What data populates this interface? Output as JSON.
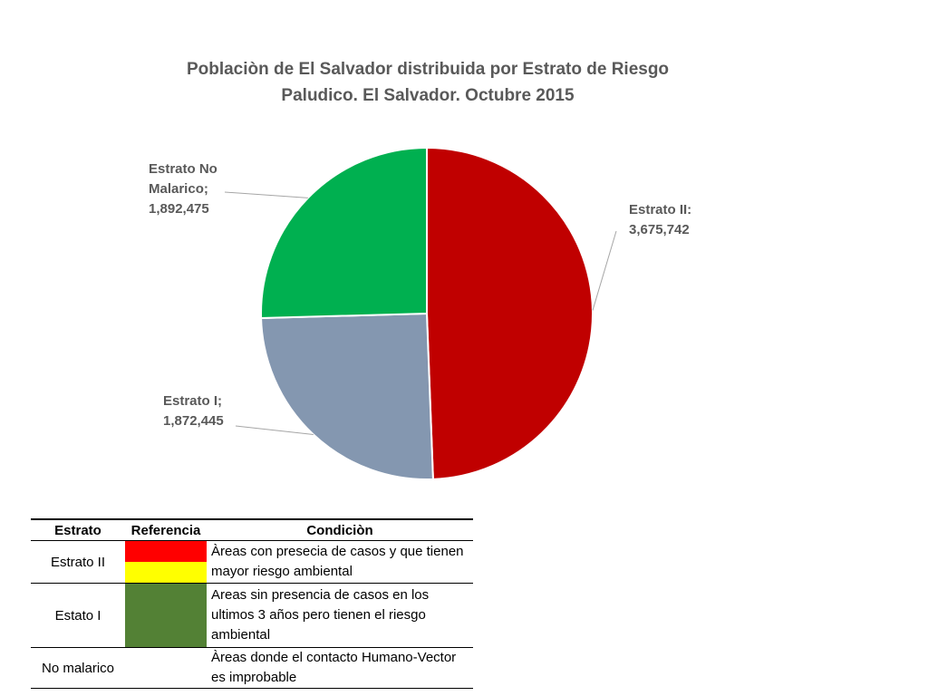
{
  "chart_data": {
    "type": "pie",
    "title_lines": [
      "Poblaciòn de El Salvador distribuida por Estrato de Riesgo",
      "Paludico. El Salvador. Octubre 2015"
    ],
    "slices": [
      {
        "label_lines": [
          "Estrato II:",
          "3,675,742"
        ],
        "value": 3675742,
        "color": "#C00000"
      },
      {
        "label_lines": [
          "Estrato I;",
          "1,872,445"
        ],
        "value": 1872445,
        "color": "#8497B0"
      },
      {
        "label_lines": [
          "Estrato No",
          "Malarico;",
          "1,892,475"
        ],
        "value": 1892475,
        "color": "#00B050"
      }
    ]
  },
  "legend_table": {
    "headers": [
      "Estrato",
      "Referencia",
      "Condiciòn"
    ],
    "rows": [
      {
        "estrato": "Estrato II",
        "swatches": [
          "#FF0000",
          "#FFFF00"
        ],
        "condicion_lines": [
          "Àreas con presecia de casos y que tienen",
          "mayor riesgo ambiental"
        ]
      },
      {
        "estrato": "Estato I",
        "swatches": [
          "#538135"
        ],
        "condicion_lines": [
          "Areas sin presencia de casos en los",
          "ultimos 3 años pero tienen el riesgo",
          "ambiental"
        ]
      },
      {
        "estrato": "No malarico",
        "swatches": [],
        "condicion_lines": [
          "Àreas donde el contacto Humano-Vector",
          "es improbable"
        ]
      }
    ]
  }
}
